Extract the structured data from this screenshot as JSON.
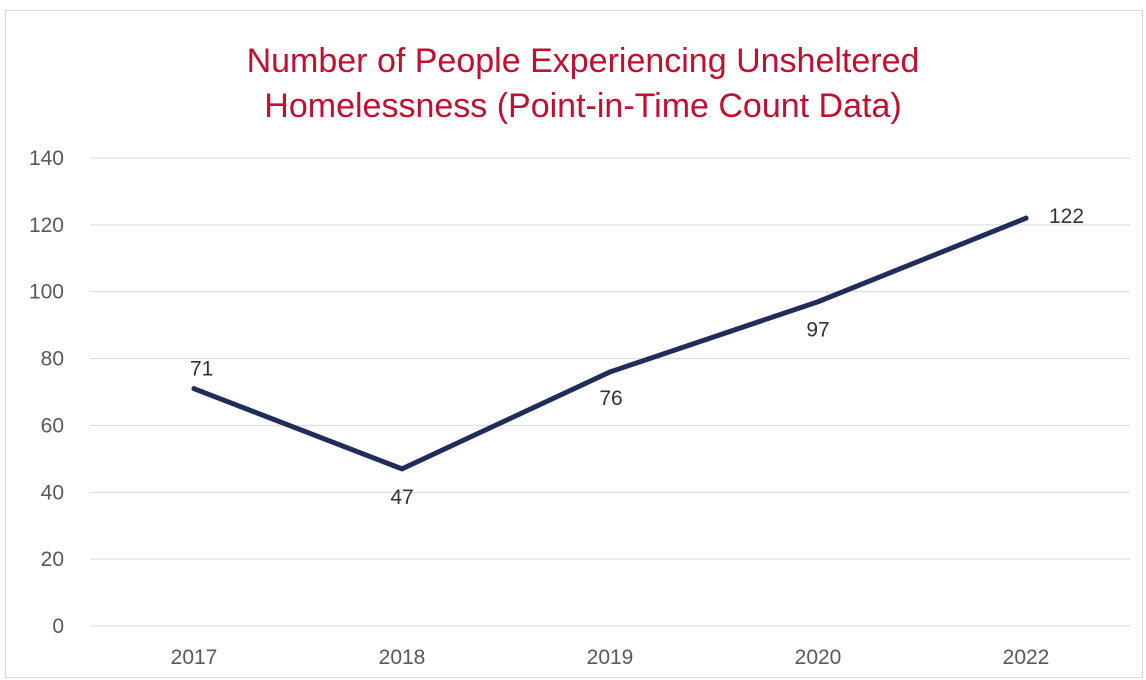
{
  "chart_data": {
    "type": "line",
    "title_lines": [
      "Number of People Experiencing Unsheltered",
      "Homelessness (Point-in-Time Count Data)"
    ],
    "categories": [
      "2017",
      "2018",
      "2019",
      "2020",
      "2022"
    ],
    "series": [
      {
        "values": [
          71,
          47,
          76,
          97,
          122
        ],
        "color": "#1f2d5a"
      }
    ],
    "ylim": [
      0,
      140
    ],
    "yticks": [
      0,
      20,
      40,
      60,
      80,
      100,
      120,
      140
    ],
    "grid": true,
    "legend": "none",
    "data_labels": true,
    "title_color": "#c00f2f"
  }
}
